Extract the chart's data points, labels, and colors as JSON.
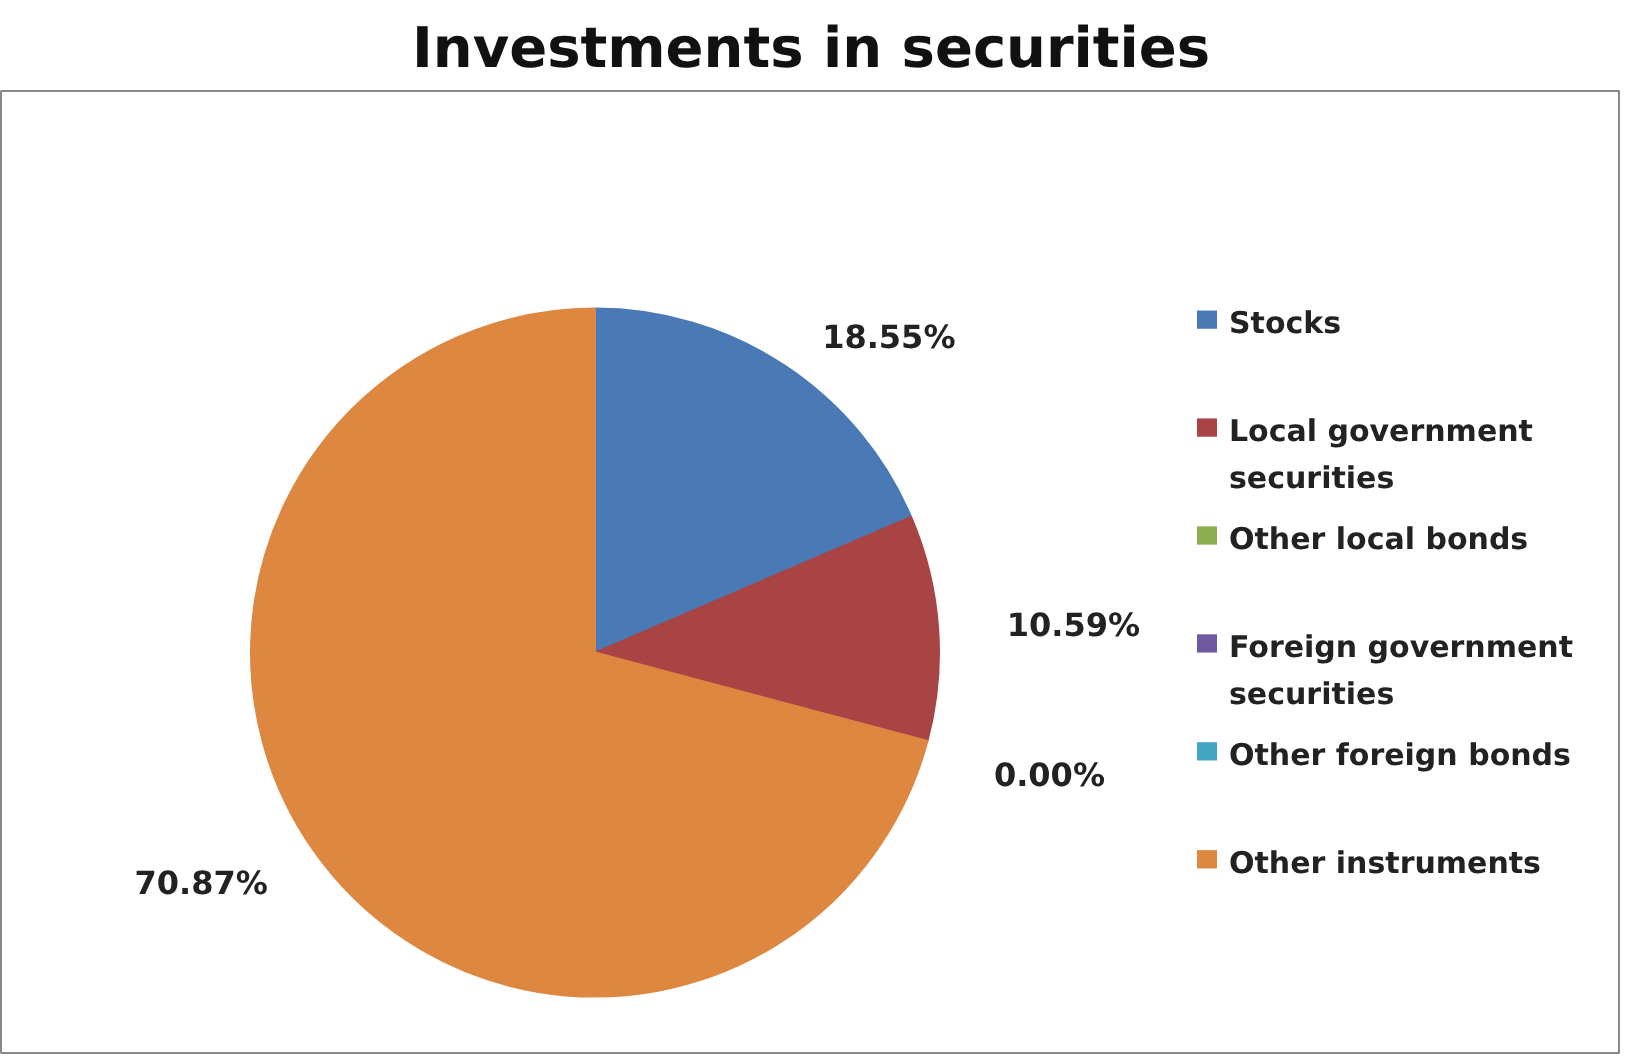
{
  "chart_data": {
    "type": "pie",
    "title": "Investments in securities",
    "categories": [
      "Stocks",
      "Local government securities",
      "Other local bonds",
      "Foreign government securities",
      "Other foreign bonds",
      "Other instruments"
    ],
    "values": [
      18.55,
      10.59,
      0,
      0,
      0,
      70.87
    ],
    "colors": [
      "#4a7ab5",
      "#a94444",
      "#8cae4f",
      "#7059a0",
      "#3fa5c0",
      "#dd8741"
    ],
    "value_labels": [
      "18.55%",
      "10.59%",
      "0.00%",
      null,
      null,
      "70.87%"
    ],
    "legend": "right"
  }
}
